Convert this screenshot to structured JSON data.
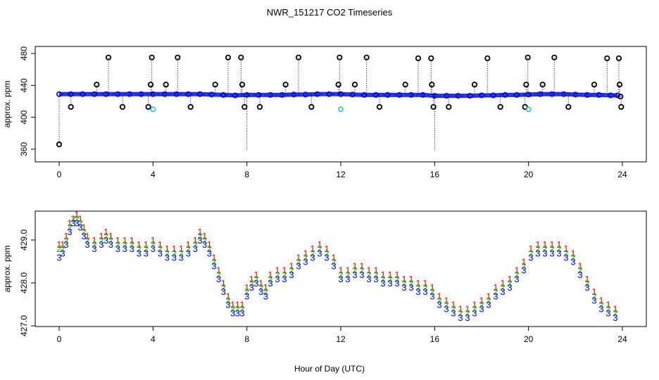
{
  "title": "NWR_151217  CO2 Timeseries",
  "xlabel": "Hour of Day (UTC)",
  "colors": {
    "marker": "#000000",
    "series1": "#ff0000",
    "series2": "#00cc00",
    "series3": "#0000ff",
    "outlier_flag": "#00cccc",
    "frame": "#000000"
  },
  "chart_data": [
    {
      "type": "scatter",
      "title": "NWR_151217  CO2 Timeseries",
      "ylabel": "approx. ppm",
      "xlim": [
        0,
        24
      ],
      "ylim": [
        360,
        480
      ],
      "xticks": [
        "0",
        "4",
        "8",
        "12",
        "16",
        "20",
        "24"
      ],
      "yticks": [
        "360",
        "400",
        "440",
        "480"
      ],
      "grid": false,
      "baseline_series": {
        "x": [
          0.0,
          0.5,
          1.0,
          1.5,
          2.0,
          2.5,
          3.0,
          3.5,
          4.0,
          4.5,
          5.0,
          5.5,
          6.0,
          6.5,
          7.0,
          7.5,
          8.0,
          8.5,
          9.0,
          9.5,
          10.0,
          10.5,
          11.0,
          11.5,
          12.0,
          12.5,
          13.0,
          13.5,
          14.0,
          14.5,
          15.0,
          15.5,
          16.0,
          16.5,
          17.0,
          17.5,
          18.0,
          18.5,
          19.0,
          19.5,
          20.0,
          20.5,
          21.0,
          21.5,
          22.0,
          22.5,
          23.0,
          23.5,
          23.8
        ],
        "y": [
          429,
          429,
          429,
          429,
          429,
          429,
          429,
          429,
          429,
          429,
          429,
          429,
          429,
          428.5,
          428,
          427.5,
          428,
          428,
          428,
          428,
          428.5,
          428.5,
          429,
          429,
          429,
          428.5,
          428,
          428,
          428,
          428,
          428,
          428,
          427,
          427,
          427,
          427,
          427.5,
          427.5,
          428,
          428,
          428.5,
          429,
          429,
          429,
          428.5,
          428,
          428,
          427.5,
          427.5
        ]
      },
      "spike_points": [
        {
          "x": 0.0,
          "y": 366
        },
        {
          "x": 0.5,
          "y": 413
        },
        {
          "x": 1.6,
          "y": 441
        },
        {
          "x": 2.1,
          "y": 475
        },
        {
          "x": 2.7,
          "y": 413
        },
        {
          "x": 3.8,
          "y": 413
        },
        {
          "x": 3.9,
          "y": 441
        },
        {
          "x": 3.95,
          "y": 475
        },
        {
          "x": 4.55,
          "y": 441
        },
        {
          "x": 5.05,
          "y": 475
        },
        {
          "x": 5.6,
          "y": 413
        },
        {
          "x": 6.65,
          "y": 441
        },
        {
          "x": 7.2,
          "y": 475
        },
        {
          "x": 7.75,
          "y": 475
        },
        {
          "x": 7.8,
          "y": 441
        },
        {
          "x": 7.9,
          "y": 413
        },
        {
          "x": 8.0,
          "y": 358
        },
        {
          "x": 8.55,
          "y": 413
        },
        {
          "x": 9.65,
          "y": 441
        },
        {
          "x": 10.2,
          "y": 475
        },
        {
          "x": 10.75,
          "y": 413
        },
        {
          "x": 11.9,
          "y": 441
        },
        {
          "x": 11.95,
          "y": 475
        },
        {
          "x": 12.6,
          "y": 441
        },
        {
          "x": 13.1,
          "y": 475
        },
        {
          "x": 13.65,
          "y": 413
        },
        {
          "x": 14.75,
          "y": 441
        },
        {
          "x": 15.3,
          "y": 474
        },
        {
          "x": 15.85,
          "y": 474
        },
        {
          "x": 15.88,
          "y": 441
        },
        {
          "x": 15.95,
          "y": 413
        },
        {
          "x": 16.0,
          "y": 358
        },
        {
          "x": 16.6,
          "y": 413
        },
        {
          "x": 17.7,
          "y": 441
        },
        {
          "x": 18.25,
          "y": 474
        },
        {
          "x": 18.8,
          "y": 413
        },
        {
          "x": 19.85,
          "y": 413
        },
        {
          "x": 19.9,
          "y": 441
        },
        {
          "x": 19.97,
          "y": 475
        },
        {
          "x": 20.6,
          "y": 441
        },
        {
          "x": 21.1,
          "y": 475
        },
        {
          "x": 21.7,
          "y": 413
        },
        {
          "x": 22.8,
          "y": 441
        },
        {
          "x": 23.35,
          "y": 474
        },
        {
          "x": 23.85,
          "y": 474
        },
        {
          "x": 23.88,
          "y": 441
        },
        {
          "x": 23.92,
          "y": 426
        },
        {
          "x": 23.95,
          "y": 413
        }
      ],
      "outlier_points": [
        {
          "x": 4.0,
          "y": 410
        },
        {
          "x": 12.0,
          "y": 410
        },
        {
          "x": 20.0,
          "y": 410
        }
      ]
    },
    {
      "type": "scatter",
      "ylabel": "approx. ppm",
      "xlim": [
        0,
        24
      ],
      "ylim": [
        427,
        429.5
      ],
      "xticks": [
        "0",
        "4",
        "8",
        "12",
        "16",
        "20",
        "24"
      ],
      "yticks": [
        "427.0",
        "428.0",
        "429.0"
      ],
      "grid": false,
      "x": [
        0.0,
        0.15,
        0.3,
        0.45,
        0.6,
        0.75,
        0.9,
        1.05,
        1.2,
        1.5,
        1.8,
        2.0,
        2.2,
        2.5,
        2.8,
        3.1,
        3.4,
        3.7,
        4.0,
        4.3,
        4.6,
        4.9,
        5.2,
        5.5,
        5.8,
        6.0,
        6.2,
        6.4,
        6.6,
        6.8,
        7.0,
        7.2,
        7.4,
        7.6,
        7.8,
        8.0,
        8.2,
        8.4,
        8.6,
        8.8,
        9.0,
        9.3,
        9.6,
        9.9,
        10.2,
        10.5,
        10.8,
        11.1,
        11.4,
        11.7,
        12.0,
        12.3,
        12.6,
        12.9,
        13.2,
        13.5,
        13.8,
        14.1,
        14.4,
        14.7,
        15.0,
        15.3,
        15.6,
        15.9,
        16.2,
        16.5,
        16.8,
        17.1,
        17.4,
        17.7,
        18.0,
        18.3,
        18.6,
        18.9,
        19.2,
        19.5,
        19.8,
        20.1,
        20.4,
        20.7,
        21.0,
        21.3,
        21.6,
        21.9,
        22.2,
        22.5,
        22.8,
        23.1,
        23.4,
        23.7
      ],
      "series": [
        {
          "name": "1",
          "values": [
            428.9,
            428.9,
            429.1,
            429.4,
            429.5,
            429.6,
            429.5,
            429.3,
            429.1,
            429.0,
            429.1,
            429.2,
            429.1,
            429.0,
            429.0,
            429.0,
            428.9,
            428.9,
            429.0,
            428.9,
            428.8,
            428.8,
            428.8,
            428.9,
            429.0,
            429.2,
            429.1,
            428.9,
            428.6,
            428.3,
            428.0,
            427.7,
            427.5,
            427.5,
            427.5,
            427.9,
            428.1,
            428.2,
            428.0,
            427.9,
            428.2,
            428.3,
            428.3,
            428.4,
            428.6,
            428.7,
            428.8,
            428.9,
            428.8,
            428.6,
            428.3,
            428.3,
            428.4,
            428.4,
            428.3,
            428.3,
            428.2,
            428.2,
            428.2,
            428.1,
            428.1,
            428.0,
            428.0,
            427.9,
            427.7,
            427.6,
            427.5,
            427.4,
            427.4,
            427.5,
            427.6,
            427.7,
            427.9,
            428.0,
            428.1,
            428.3,
            428.5,
            428.8,
            428.9,
            428.9,
            428.9,
            428.9,
            428.8,
            428.7,
            428.4,
            428.1,
            427.8,
            427.6,
            427.5,
            427.4
          ]
        },
        {
          "name": "2",
          "values": [
            428.8,
            428.8,
            429.0,
            429.3,
            429.5,
            429.5,
            429.4,
            429.2,
            429.0,
            428.9,
            429.0,
            429.1,
            429.0,
            428.9,
            428.9,
            428.9,
            428.8,
            428.8,
            428.9,
            428.8,
            428.7,
            428.7,
            428.7,
            428.8,
            428.9,
            429.1,
            429.0,
            428.8,
            428.5,
            428.2,
            427.9,
            427.6,
            427.4,
            427.4,
            427.4,
            427.8,
            428.0,
            428.1,
            427.9,
            427.8,
            428.1,
            428.2,
            428.2,
            428.3,
            428.5,
            428.6,
            428.7,
            428.8,
            428.7,
            428.5,
            428.2,
            428.2,
            428.3,
            428.3,
            428.2,
            428.2,
            428.1,
            428.1,
            428.1,
            428.0,
            428.0,
            427.9,
            427.9,
            427.8,
            427.6,
            427.5,
            427.4,
            427.3,
            427.3,
            427.4,
            427.5,
            427.6,
            427.8,
            427.9,
            428.0,
            428.2,
            428.4,
            428.7,
            428.8,
            428.8,
            428.8,
            428.8,
            428.7,
            428.6,
            428.3,
            428.0,
            427.7,
            427.5,
            427.4,
            427.3
          ]
        },
        {
          "name": "3",
          "values": [
            428.6,
            428.7,
            428.9,
            429.2,
            429.4,
            429.4,
            429.3,
            429.1,
            428.9,
            428.8,
            428.9,
            429.0,
            428.9,
            428.8,
            428.8,
            428.8,
            428.7,
            428.7,
            428.8,
            428.7,
            428.6,
            428.6,
            428.6,
            428.7,
            428.8,
            429.0,
            428.9,
            428.7,
            428.4,
            428.1,
            427.8,
            427.5,
            427.3,
            427.3,
            427.3,
            427.7,
            427.9,
            428.0,
            427.8,
            427.7,
            428.0,
            428.1,
            428.1,
            428.2,
            428.4,
            428.5,
            428.6,
            428.7,
            428.6,
            428.4,
            428.1,
            428.1,
            428.2,
            428.2,
            428.1,
            428.1,
            428.0,
            428.0,
            428.0,
            427.9,
            427.9,
            427.8,
            427.8,
            427.7,
            427.5,
            427.4,
            427.3,
            427.2,
            427.2,
            427.3,
            427.4,
            427.5,
            427.7,
            427.8,
            427.9,
            428.1,
            428.3,
            428.6,
            428.7,
            428.7,
            428.7,
            428.7,
            428.6,
            428.5,
            428.2,
            427.9,
            427.6,
            427.4,
            427.3,
            427.2
          ]
        }
      ]
    }
  ]
}
